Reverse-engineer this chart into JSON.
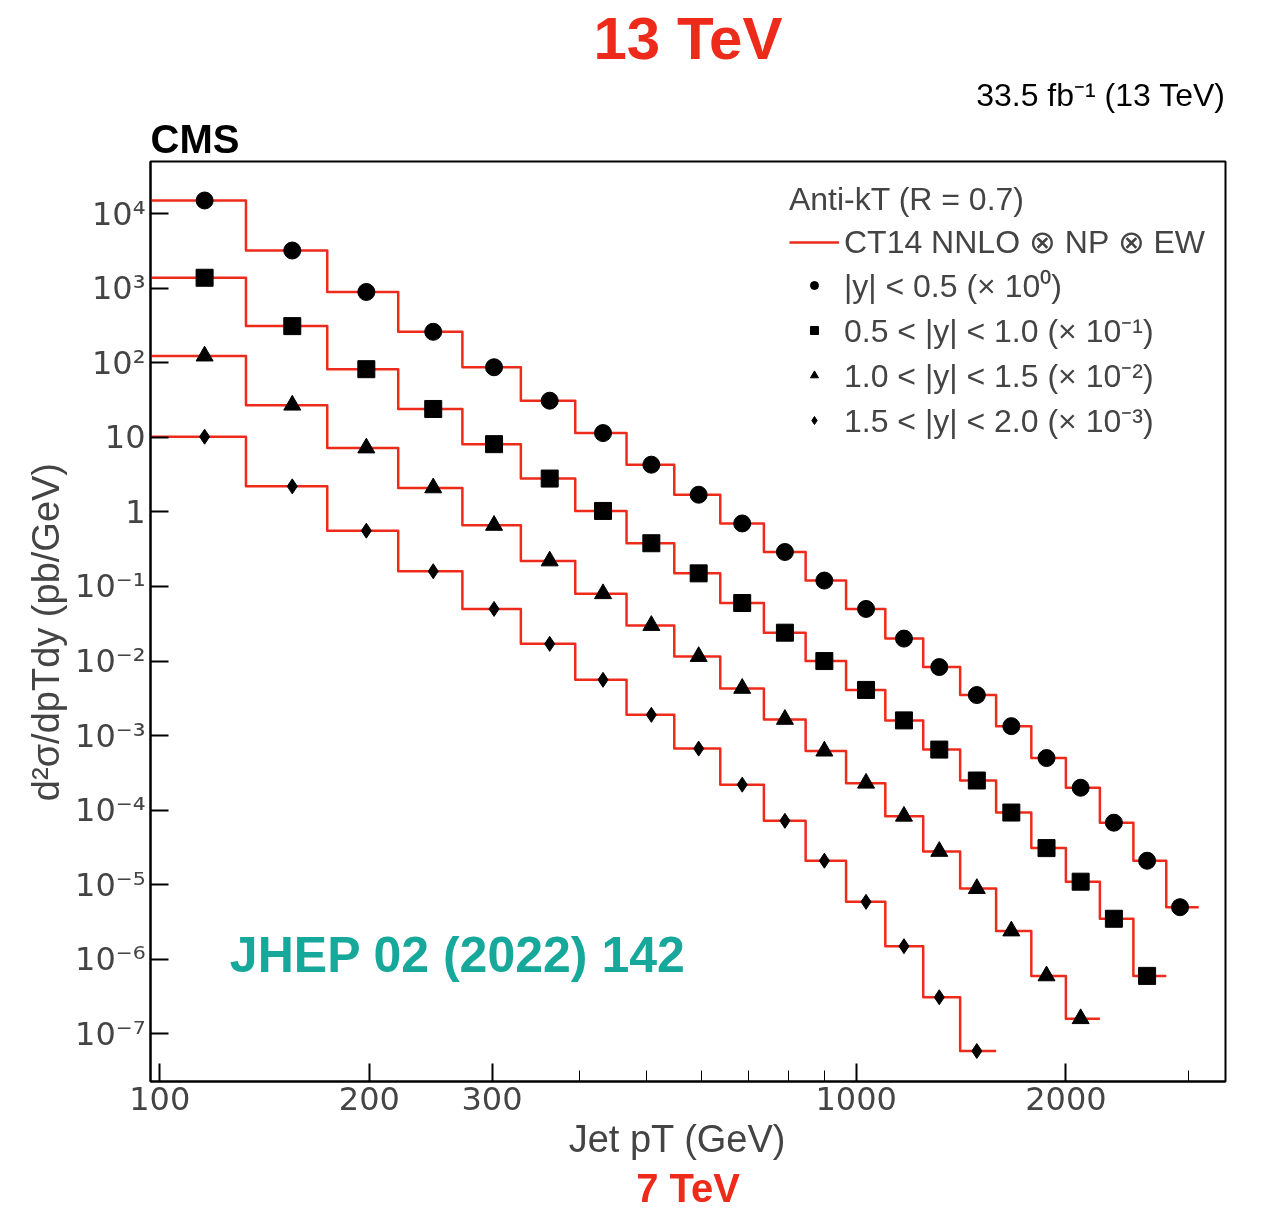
{
  "chart_data": {
    "type": "scatter",
    "title": "13 TeV",
    "xlabel": "Jet pT   (GeV)",
    "ylabel": "d²σ/dpTdy   (pb/GeV)",
    "legend_title": "Anti-kT (R = 0.7)",
    "annotations": [
      "CMS",
      "33.5 fb⁻¹ (13 TeV)",
      "JHEP 02 (2022) 142",
      "7 TeV"
    ],
    "log": "xy",
    "grid": false,
    "legend": "top right",
    "xlim": [
      97,
      3390
    ],
    "ylim": [
      2.3e-08,
      50000
    ],
    "xticks": [
      100,
      200,
      300,
      {
        "value": 400,
        "label": null
      },
      {
        "value": 500,
        "label": null
      },
      {
        "value": 600,
        "label": null
      },
      {
        "value": 700,
        "label": null
      },
      {
        "value": 800,
        "label": null
      },
      {
        "value": 900,
        "label": null
      },
      1000,
      2000,
      {
        "value": 3000,
        "label": null
      }
    ],
    "yticks": [
      {
        "value": 1e-07,
        "label": "10⁻⁷"
      },
      {
        "value": 1e-06,
        "label": "10⁻⁶"
      },
      {
        "value": 1e-05,
        "label": "10⁻⁵"
      },
      {
        "value": 0.0001,
        "label": "10⁻⁴"
      },
      {
        "value": 0.001,
        "label": "10⁻³"
      },
      {
        "value": 0.01,
        "label": "10⁻²"
      },
      {
        "value": 0.1,
        "label": "10⁻¹"
      },
      1,
      10,
      {
        "value": 100,
        "label": "10²"
      },
      {
        "value": 1000,
        "label": "10³"
      },
      {
        "value": 10000,
        "label": "10⁴"
      }
    ],
    "series": [
      {
        "type": "step",
        "name": "CT14 NNLO ⊗ NP ⊗ EW",
        "color": "#ee2a1b",
        "x": [
          97,
          133,
          174,
          220,
          272,
          330,
          395,
          468,
          548,
          638,
          737,
          846,
          967,
          1101,
          1248,
          1410,
          1588,
          1784,
          2000,
          2238,
          2500,
          2787,
          3103
        ],
        "values": [
          15000,
          3200,
          890,
          260,
          87,
          31,
          11.4,
          4.3,
          1.7,
          0.7,
          0.29,
          0.12,
          0.05,
          0.02,
          0.0083,
          0.0035,
          0.00134,
          0.0005,
          0.0002,
          6.8e-05,
          2.1e-05,
          5e-06,
          5e-06
        ]
      },
      {
        "type": "step",
        "color": "#ee2a1b",
        "x": [
          97,
          133,
          174,
          220,
          272,
          330,
          395,
          468,
          548,
          638,
          737,
          846,
          967,
          1101,
          1248,
          1410,
          1588,
          1784,
          2000,
          2238,
          2500,
          2787
        ],
        "values": [
          1380,
          310,
          82,
          24,
          8.1,
          2.8,
          1.03,
          0.38,
          0.15,
          0.06,
          0.024,
          0.01,
          0.0041,
          0.0016,
          0.00065,
          0.00025,
          9.3e-05,
          3.1e-05,
          1.1e-05,
          3.5e-06,
          6e-07,
          6e-07
        ]
      },
      {
        "type": "step",
        "color": "#ee2a1b",
        "x": [
          97,
          133,
          174,
          220,
          272,
          330,
          395,
          468,
          548,
          638,
          737,
          846,
          967,
          1101,
          1248,
          1410,
          1588,
          1784,
          2000,
          2238
        ],
        "values": [
          123,
          27,
          7.2,
          2.1,
          0.66,
          0.22,
          0.08,
          0.03,
          0.0115,
          0.0043,
          0.00165,
          0.00062,
          0.00023,
          8.3e-05,
          2.8e-05,
          8.9e-06,
          2.4e-06,
          6e-07,
          1.6e-07,
          1.6e-07
        ]
      },
      {
        "type": "step",
        "color": "#ee2a1b",
        "x": [
          97,
          133,
          174,
          220,
          272,
          330,
          395,
          468,
          548,
          638,
          737,
          846,
          967,
          1101,
          1248,
          1410,
          1588
        ],
        "values": [
          10.2,
          2.2,
          0.56,
          0.16,
          0.05,
          0.017,
          0.0056,
          0.0019,
          0.00067,
          0.00022,
          7.2e-05,
          2.1e-05,
          5.9e-06,
          1.5e-06,
          3.1e-07,
          5.9e-08,
          5.9e-08
        ]
      },
      {
        "name": "|y| < 0.5 (× 10⁰)",
        "marker": "circle",
        "color": "#000000",
        "x": [
          116,
          155,
          198,
          247,
          302,
          363,
          433,
          508,
          594,
          686,
          790,
          900,
          1033,
          1171,
          1316,
          1490,
          1670,
          1876,
          2100,
          2344,
          2616,
          2917
        ],
        "values": [
          15000,
          3200,
          890,
          260,
          87,
          31,
          11.4,
          4.3,
          1.7,
          0.7,
          0.29,
          0.12,
          0.05,
          0.02,
          0.0083,
          0.0035,
          0.00134,
          0.0005,
          0.0002,
          6.8e-05,
          2.1e-05,
          5e-06
        ]
      },
      {
        "name": "0.5 < |y| < 1.0 (× 10⁻¹)",
        "marker": "square",
        "color": "#000000",
        "x": [
          116,
          155,
          198,
          247,
          302,
          363,
          433,
          508,
          594,
          686,
          790,
          900,
          1033,
          1171,
          1316,
          1490,
          1670,
          1876,
          2100,
          2344,
          2616
        ],
        "values": [
          1380,
          310,
          82,
          24,
          8.1,
          2.8,
          1.03,
          0.38,
          0.15,
          0.06,
          0.024,
          0.01,
          0.0041,
          0.0016,
          0.00065,
          0.00025,
          9.3e-05,
          3.1e-05,
          1.1e-05,
          3.5e-06,
          6e-07
        ]
      },
      {
        "name": "1.0 < |y| < 1.5 (× 10⁻²)",
        "marker": "triangle",
        "color": "#000000",
        "x": [
          116,
          155,
          198,
          247,
          302,
          363,
          433,
          508,
          594,
          686,
          790,
          900,
          1033,
          1171,
          1316,
          1490,
          1670,
          1876,
          2100
        ],
        "values": [
          123,
          27,
          7.2,
          2.1,
          0.66,
          0.22,
          0.08,
          0.03,
          0.0115,
          0.0043,
          0.00165,
          0.00062,
          0.00023,
          8.3e-05,
          2.8e-05,
          8.9e-06,
          2.4e-06,
          6e-07,
          1.6e-07
        ]
      },
      {
        "name": "1.5 < |y| < 2.0 (× 10⁻³)",
        "marker": "diamond",
        "color": "#000000",
        "x": [
          116,
          155,
          198,
          247,
          302,
          363,
          433,
          508,
          594,
          686,
          790,
          900,
          1033,
          1171,
          1316,
          1490
        ],
        "values": [
          10.2,
          2.2,
          0.56,
          0.16,
          0.05,
          0.017,
          0.0056,
          0.0019,
          0.00067,
          0.00022,
          7.2e-05,
          2.1e-05,
          5.9e-06,
          1.5e-06,
          3.1e-07,
          5.9e-08
        ]
      }
    ]
  }
}
